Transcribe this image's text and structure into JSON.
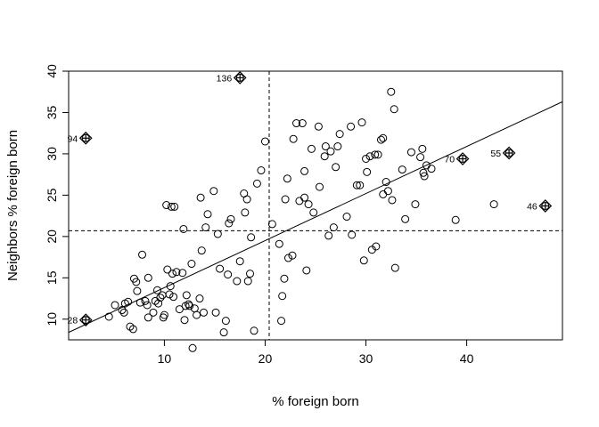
{
  "chart_data": {
    "type": "scatter",
    "title": "",
    "xlabel": "% foreign born",
    "ylabel": "Neighbors % foreign born",
    "xlim": [
      0.5,
      49.5
    ],
    "ylim": [
      7.5,
      40.0
    ],
    "xticks": [
      10,
      20,
      30,
      40
    ],
    "yticks": [
      10,
      15,
      20,
      25,
      30,
      35,
      40
    ],
    "xtick_labels": [
      "10",
      "20",
      "30",
      "40"
    ],
    "ytick_labels": [
      "10",
      "15",
      "20",
      "25",
      "30",
      "35",
      "40"
    ],
    "grid": false,
    "marker": "open-circle",
    "reference_lines": {
      "vertical_x": 20.4,
      "horizontal_y": 20.7,
      "style": "dashed"
    },
    "regression_line": {
      "x": [
        0.5,
        49.5
      ],
      "y": [
        8.4,
        36.3
      ]
    },
    "influential_points": [
      {
        "label": "136",
        "x": 17.5,
        "y": 39.2
      },
      {
        "label": "94",
        "x": 2.2,
        "y": 31.9
      },
      {
        "label": "70",
        "x": 39.6,
        "y": 29.4
      },
      {
        "label": "55",
        "x": 44.2,
        "y": 30.1
      },
      {
        "label": "46",
        "x": 47.8,
        "y": 23.7
      },
      {
        "label": "28",
        "x": 2.2,
        "y": 9.9
      }
    ],
    "points": [
      [
        4.5,
        10.3
      ],
      [
        5.1,
        11.7
      ],
      [
        5.8,
        11.1
      ],
      [
        6.0,
        10.8
      ],
      [
        6.1,
        11.9
      ],
      [
        6.4,
        12.1
      ],
      [
        6.6,
        9.1
      ],
      [
        6.9,
        8.8
      ],
      [
        7.0,
        14.9
      ],
      [
        7.2,
        14.5
      ],
      [
        7.3,
        13.4
      ],
      [
        7.6,
        12.0
      ],
      [
        7.8,
        17.8
      ],
      [
        8.1,
        12.2
      ],
      [
        8.3,
        11.7
      ],
      [
        8.4,
        15.0
      ],
      [
        8.4,
        10.2
      ],
      [
        8.9,
        10.8
      ],
      [
        9.1,
        12.2
      ],
      [
        9.3,
        13.5
      ],
      [
        9.4,
        11.9
      ],
      [
        9.6,
        12.6
      ],
      [
        9.8,
        12.9
      ],
      [
        9.9,
        10.2
      ],
      [
        10.0,
        10.5
      ],
      [
        10.2,
        23.8
      ],
      [
        10.3,
        16.0
      ],
      [
        10.5,
        13.0
      ],
      [
        10.6,
        14.0
      ],
      [
        10.7,
        23.6
      ],
      [
        10.8,
        15.5
      ],
      [
        10.9,
        12.7
      ],
      [
        11.0,
        23.6
      ],
      [
        11.2,
        15.7
      ],
      [
        11.5,
        11.2
      ],
      [
        11.8,
        15.6
      ],
      [
        11.9,
        20.9
      ],
      [
        12.0,
        9.9
      ],
      [
        12.1,
        11.6
      ],
      [
        12.2,
        12.9
      ],
      [
        12.4,
        11.8
      ],
      [
        12.5,
        11.6
      ],
      [
        12.7,
        16.7
      ],
      [
        12.8,
        6.5
      ],
      [
        13.0,
        11.3
      ],
      [
        13.2,
        10.5
      ],
      [
        13.5,
        12.5
      ],
      [
        13.6,
        24.7
      ],
      [
        13.7,
        18.3
      ],
      [
        13.9,
        10.8
      ],
      [
        14.1,
        21.1
      ],
      [
        14.3,
        22.7
      ],
      [
        14.9,
        25.5
      ],
      [
        15.1,
        10.8
      ],
      [
        15.3,
        20.3
      ],
      [
        15.5,
        16.1
      ],
      [
        15.9,
        8.4
      ],
      [
        16.1,
        9.8
      ],
      [
        16.3,
        15.4
      ],
      [
        16.4,
        21.6
      ],
      [
        16.6,
        22.1
      ],
      [
        17.2,
        14.6
      ],
      [
        17.5,
        17.0
      ],
      [
        17.9,
        25.2
      ],
      [
        18.0,
        22.9
      ],
      [
        18.2,
        24.5
      ],
      [
        18.3,
        14.6
      ],
      [
        18.5,
        15.5
      ],
      [
        18.6,
        19.9
      ],
      [
        18.9,
        8.6
      ],
      [
        19.2,
        26.4
      ],
      [
        19.6,
        28.0
      ],
      [
        20.0,
        31.5
      ],
      [
        20.7,
        21.5
      ],
      [
        21.4,
        19.1
      ],
      [
        21.6,
        9.8
      ],
      [
        21.7,
        12.8
      ],
      [
        21.9,
        14.9
      ],
      [
        22.0,
        24.5
      ],
      [
        22.2,
        27.0
      ],
      [
        22.3,
        17.4
      ],
      [
        22.7,
        17.7
      ],
      [
        22.8,
        31.8
      ],
      [
        23.1,
        33.7
      ],
      [
        23.4,
        24.3
      ],
      [
        23.7,
        33.7
      ],
      [
        23.9,
        27.9
      ],
      [
        23.9,
        24.7
      ],
      [
        24.1,
        15.9
      ],
      [
        24.3,
        23.9
      ],
      [
        24.6,
        30.6
      ],
      [
        24.8,
        22.9
      ],
      [
        25.3,
        33.3
      ],
      [
        25.4,
        26.0
      ],
      [
        25.9,
        29.7
      ],
      [
        26.0,
        30.9
      ],
      [
        26.3,
        20.1
      ],
      [
        26.5,
        30.3
      ],
      [
        26.8,
        21.1
      ],
      [
        27.0,
        28.4
      ],
      [
        27.2,
        30.9
      ],
      [
        27.4,
        32.4
      ],
      [
        28.1,
        22.4
      ],
      [
        28.5,
        33.3
      ],
      [
        28.6,
        20.2
      ],
      [
        29.1,
        26.2
      ],
      [
        29.4,
        26.2
      ],
      [
        29.6,
        33.8
      ],
      [
        29.8,
        17.1
      ],
      [
        30.0,
        29.4
      ],
      [
        30.1,
        27.8
      ],
      [
        30.4,
        29.7
      ],
      [
        30.6,
        18.4
      ],
      [
        30.9,
        29.9
      ],
      [
        31.0,
        18.8
      ],
      [
        31.2,
        29.9
      ],
      [
        31.5,
        31.7
      ],
      [
        31.7,
        31.9
      ],
      [
        31.7,
        25.1
      ],
      [
        32.0,
        26.6
      ],
      [
        32.2,
        25.5
      ],
      [
        32.5,
        37.5
      ],
      [
        32.6,
        24.4
      ],
      [
        32.8,
        35.4
      ],
      [
        32.9,
        16.2
      ],
      [
        33.6,
        28.1
      ],
      [
        33.9,
        22.1
      ],
      [
        34.5,
        30.2
      ],
      [
        34.9,
        23.9
      ],
      [
        35.4,
        29.6
      ],
      [
        35.6,
        30.6
      ],
      [
        35.7,
        27.7
      ],
      [
        35.8,
        27.3
      ],
      [
        36.0,
        28.6
      ],
      [
        36.5,
        28.2
      ],
      [
        38.9,
        22.0
      ],
      [
        42.7,
        23.9
      ]
    ]
  }
}
